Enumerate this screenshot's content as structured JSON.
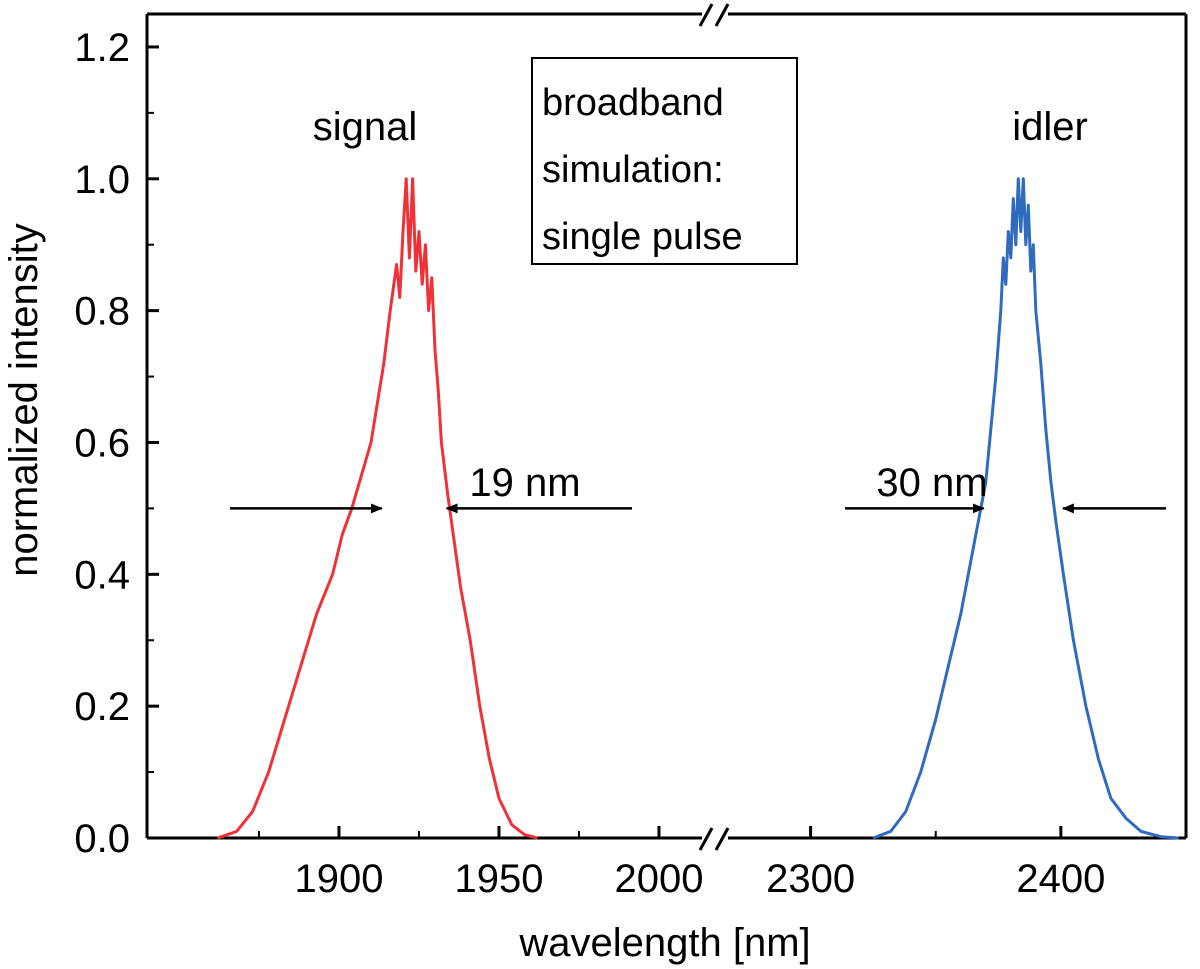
{
  "chart_data": {
    "type": "line",
    "xlabel": "wavelength [nm]",
    "ylabel": "normalized intensity",
    "broken_x_axis": true,
    "x_segments": [
      {
        "range": [
          1840,
          2015
        ],
        "ticks": [
          1900,
          1950,
          2000
        ]
      },
      {
        "range": [
          2265,
          2450
        ],
        "ticks": [
          2300,
          2400
        ]
      }
    ],
    "ylim": [
      0,
      1.25
    ],
    "yticks": [
      "0.0",
      "0.2",
      "0.4",
      "0.6",
      "0.8",
      "1.0",
      "1.2"
    ],
    "xtick_labels": [
      "1900",
      "1950",
      "2000",
      "2300",
      "2400"
    ],
    "grid": false,
    "series": [
      {
        "name": "signal",
        "color": "#ee3338",
        "x": [
          1862,
          1868,
          1873,
          1878,
          1883,
          1888,
          1893,
          1898,
          1901,
          1904,
          1907,
          1910,
          1912,
          1914,
          1916,
          1918,
          1919,
          1920,
          1921,
          1922,
          1923,
          1924,
          1925,
          1926,
          1927,
          1928,
          1929,
          1930,
          1931,
          1932,
          1934,
          1936,
          1938,
          1941,
          1944,
          1947,
          1950,
          1954,
          1958,
          1962
        ],
        "y": [
          0.0,
          0.01,
          0.04,
          0.1,
          0.18,
          0.26,
          0.34,
          0.4,
          0.46,
          0.5,
          0.55,
          0.6,
          0.66,
          0.72,
          0.8,
          0.87,
          0.82,
          0.92,
          1.0,
          0.88,
          1.0,
          0.86,
          0.92,
          0.84,
          0.9,
          0.8,
          0.85,
          0.74,
          0.68,
          0.6,
          0.52,
          0.45,
          0.38,
          0.3,
          0.2,
          0.12,
          0.06,
          0.02,
          0.005,
          0.0
        ]
      },
      {
        "name": "idler",
        "color": "#2f6bbf",
        "x": [
          2325,
          2332,
          2338,
          2344,
          2350,
          2355,
          2360,
          2364,
          2367,
          2370,
          2372,
          2374,
          2376,
          2377,
          2378,
          2379,
          2380,
          2381,
          2382,
          2383,
          2384,
          2385,
          2386,
          2387,
          2388,
          2389,
          2390,
          2392,
          2394,
          2396,
          2398,
          2401,
          2405,
          2410,
          2415,
          2420,
          2426,
          2432,
          2440,
          2447
        ],
        "y": [
          0.0,
          0.01,
          0.04,
          0.1,
          0.18,
          0.26,
          0.34,
          0.42,
          0.48,
          0.54,
          0.62,
          0.7,
          0.8,
          0.88,
          0.84,
          0.92,
          0.88,
          0.97,
          0.9,
          1.0,
          0.92,
          1.0,
          0.9,
          0.96,
          0.86,
          0.9,
          0.8,
          0.72,
          0.62,
          0.54,
          0.48,
          0.4,
          0.3,
          0.2,
          0.12,
          0.06,
          0.03,
          0.01,
          0.002,
          0.0
        ]
      }
    ],
    "annotations": [
      {
        "text": "signal",
        "x": 1900,
        "y": 1.1
      },
      {
        "text": "idler",
        "x": 2385,
        "y": 1.04
      },
      {
        "text": "19 nm",
        "x_from": 1914,
        "x_to": 1933,
        "y": 0.5
      },
      {
        "text": "30 nm",
        "x_from": 2370,
        "x_to": 2400,
        "y": 0.5
      }
    ],
    "text_box": [
      "broadband",
      "simulation:",
      "single pulse"
    ]
  }
}
